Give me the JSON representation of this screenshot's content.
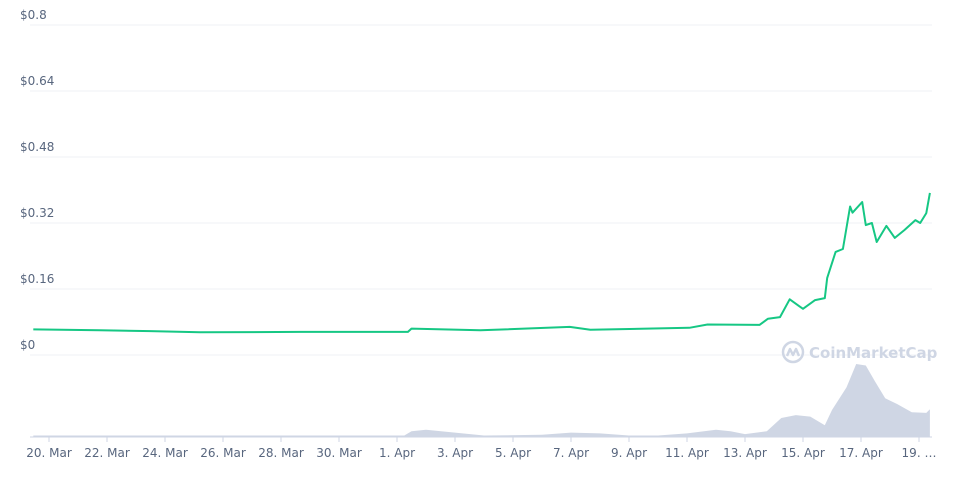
{
  "chart_data": {
    "type": "line",
    "title": "",
    "xlabel": "",
    "ylabel": "",
    "ylim": [
      0,
      0.8
    ],
    "grid": true,
    "y_ticks": [
      "$0",
      "$0.16",
      "$0.32",
      "$0.48",
      "$0.64",
      "$0.8"
    ],
    "y_tick_values": [
      0,
      0.16,
      0.32,
      0.48,
      0.64,
      0.8
    ],
    "x_ticks": [
      "20. Mar",
      "22. Mar",
      "24. Mar",
      "26. Mar",
      "28. Mar",
      "30. Mar",
      "1. Apr",
      "3. Apr",
      "5. Apr",
      "7. Apr",
      "9. Apr",
      "11. Apr",
      "13. Apr",
      "15. Apr",
      "17. Apr",
      "19. …"
    ],
    "x_tick_dates": [
      "Mar 20 00:00",
      "Mar 22 00:00",
      "Mar 24 00:00",
      "Mar 26 00:00",
      "Mar 28 00:00",
      "Mar 30 00:00",
      "Apr 1 00:00",
      "Apr 3 00:00",
      "Apr 5 00:00",
      "Apr 7 00:00",
      "Apr 9 00:00",
      "Apr 11 00:00",
      "Apr 13 00:00",
      "Apr 15 00:00",
      "Apr 17 00:00",
      "Apr 19 00:00"
    ],
    "series": [
      {
        "color": "#16c784",
        "points": [
          [
            "Mar 19 11:00",
            0.062
          ],
          [
            "Mar 21 18:00",
            0.06
          ],
          [
            "Mar 23 12:00",
            0.058
          ],
          [
            "Mar 25 05:00",
            0.055
          ],
          [
            "Mar 28 16:00",
            0.056
          ],
          [
            "Apr 1 09:00",
            0.056
          ],
          [
            "Apr 1 12:00",
            0.064
          ],
          [
            "Apr 3 21:00",
            0.06
          ],
          [
            "Apr 6 23:00",
            0.068
          ],
          [
            "Apr 7 16:00",
            0.061
          ],
          [
            "Apr 11 02:00",
            0.066
          ],
          [
            "Apr 11 17:00",
            0.074
          ],
          [
            "Apr 13 12:00",
            0.073
          ],
          [
            "Apr 13 19:00",
            0.088
          ],
          [
            "Apr 14 05:00",
            0.092
          ],
          [
            "Apr 14 13:00",
            0.135
          ],
          [
            "Apr 14 21:00",
            0.118
          ],
          [
            "Apr 15 00:00",
            0.112
          ],
          [
            "Apr 15 10:00",
            0.133
          ],
          [
            "Apr 15 18:00",
            0.138
          ],
          [
            "Apr 15 20:00",
            0.187
          ],
          [
            "Apr 16 03:00",
            0.25
          ],
          [
            "Apr 16 09:00",
            0.257
          ],
          [
            "Apr 16 15:00",
            0.36
          ],
          [
            "Apr 16 17:00",
            0.345
          ],
          [
            "Apr 17 01:00",
            0.371
          ],
          [
            "Apr 17 04:00",
            0.315
          ],
          [
            "Apr 17 09:00",
            0.32
          ],
          [
            "Apr 17 13:00",
            0.274
          ],
          [
            "Apr 17 21:00",
            0.313
          ],
          [
            "Apr 18 04:00",
            0.284
          ],
          [
            "Apr 18 12:00",
            0.303
          ],
          [
            "Apr 18 21:00",
            0.327
          ],
          [
            "Apr 19 01:00",
            0.32
          ],
          [
            "Apr 19 06:00",
            0.344
          ],
          [
            "Apr 19 09:00",
            0.393
          ]
        ]
      }
    ],
    "volume": {
      "color": "#cfd6e4",
      "relative_points": [
        [
          "Mar 19 11:00",
          0.02
        ],
        [
          "Apr 1 06:00",
          0.02
        ],
        [
          "Apr 1 12:00",
          0.08
        ],
        [
          "Apr 2 00:00",
          0.1
        ],
        [
          "Apr 3 00:00",
          0.06
        ],
        [
          "Apr 4 00:00",
          0.02
        ],
        [
          "Apr 6 00:00",
          0.03
        ],
        [
          "Apr 7 00:00",
          0.06
        ],
        [
          "Apr 8 00:00",
          0.05
        ],
        [
          "Apr 9 00:00",
          0.02
        ],
        [
          "Apr 10 00:00",
          0.02
        ],
        [
          "Apr 11 00:00",
          0.05
        ],
        [
          "Apr 12 00:00",
          0.1
        ],
        [
          "Apr 12 12:00",
          0.08
        ],
        [
          "Apr 13 00:00",
          0.04
        ],
        [
          "Apr 13 18:00",
          0.08
        ],
        [
          "Apr 14 06:00",
          0.26
        ],
        [
          "Apr 14 18:00",
          0.3
        ],
        [
          "Apr 15 06:00",
          0.28
        ],
        [
          "Apr 15 18:00",
          0.16
        ],
        [
          "Apr 16 00:00",
          0.37
        ],
        [
          "Apr 16 12:00",
          0.68
        ],
        [
          "Apr 16 20:00",
          1.0
        ],
        [
          "Apr 17 04:00",
          0.98
        ],
        [
          "Apr 17 12:00",
          0.75
        ],
        [
          "Apr 17 20:00",
          0.53
        ],
        [
          "Apr 18 06:00",
          0.45
        ],
        [
          "Apr 18 18:00",
          0.34
        ],
        [
          "Apr 19 06:00",
          0.33
        ],
        [
          "Apr 19 09:00",
          0.38
        ]
      ]
    }
  },
  "watermark": {
    "text": "CoinMarketCap"
  }
}
